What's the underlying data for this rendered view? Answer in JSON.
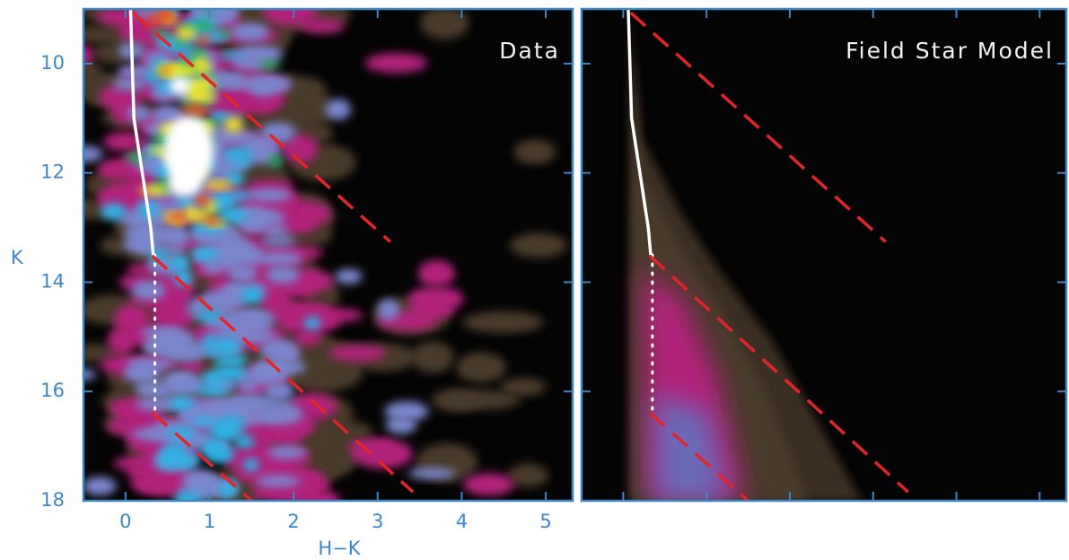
{
  "chart_data": {
    "type": "line",
    "panels": [
      "Data",
      "Field Star Model"
    ],
    "x_label": "H−K",
    "y_label": "K",
    "xlim": [
      -0.5,
      5.32
    ],
    "ylim": [
      18,
      9
    ],
    "xticks": [
      0,
      1,
      2,
      3,
      4,
      5
    ],
    "yticks": [
      10,
      12,
      14,
      16,
      18
    ],
    "axis_color": "#3f86c4",
    "series": [
      {
        "color": "#ffffff",
        "style": "solid",
        "x": [
          0.06,
          0.1,
          0.2,
          0.3,
          0.33
        ],
        "values": [
          9,
          11,
          12,
          13,
          13.5
        ]
      },
      {
        "color": "#ffffff",
        "style": "dotted",
        "x": [
          0.35,
          0.35
        ],
        "values": [
          13.5,
          16.4
        ]
      },
      {
        "color": "#e0262b",
        "style": "dashed",
        "x": [
          0.09,
          3.15
        ],
        "values": [
          9.07,
          13.26
        ]
      },
      {
        "color": "#e0262b",
        "style": "dashed",
        "x": [
          0.32,
          3.42
        ],
        "values": [
          13.52,
          17.84
        ]
      },
      {
        "color": "#e0262b",
        "style": "dashed",
        "x": [
          0.32,
          1.5
        ],
        "values": [
          16.39,
          18
        ]
      }
    ]
  }
}
